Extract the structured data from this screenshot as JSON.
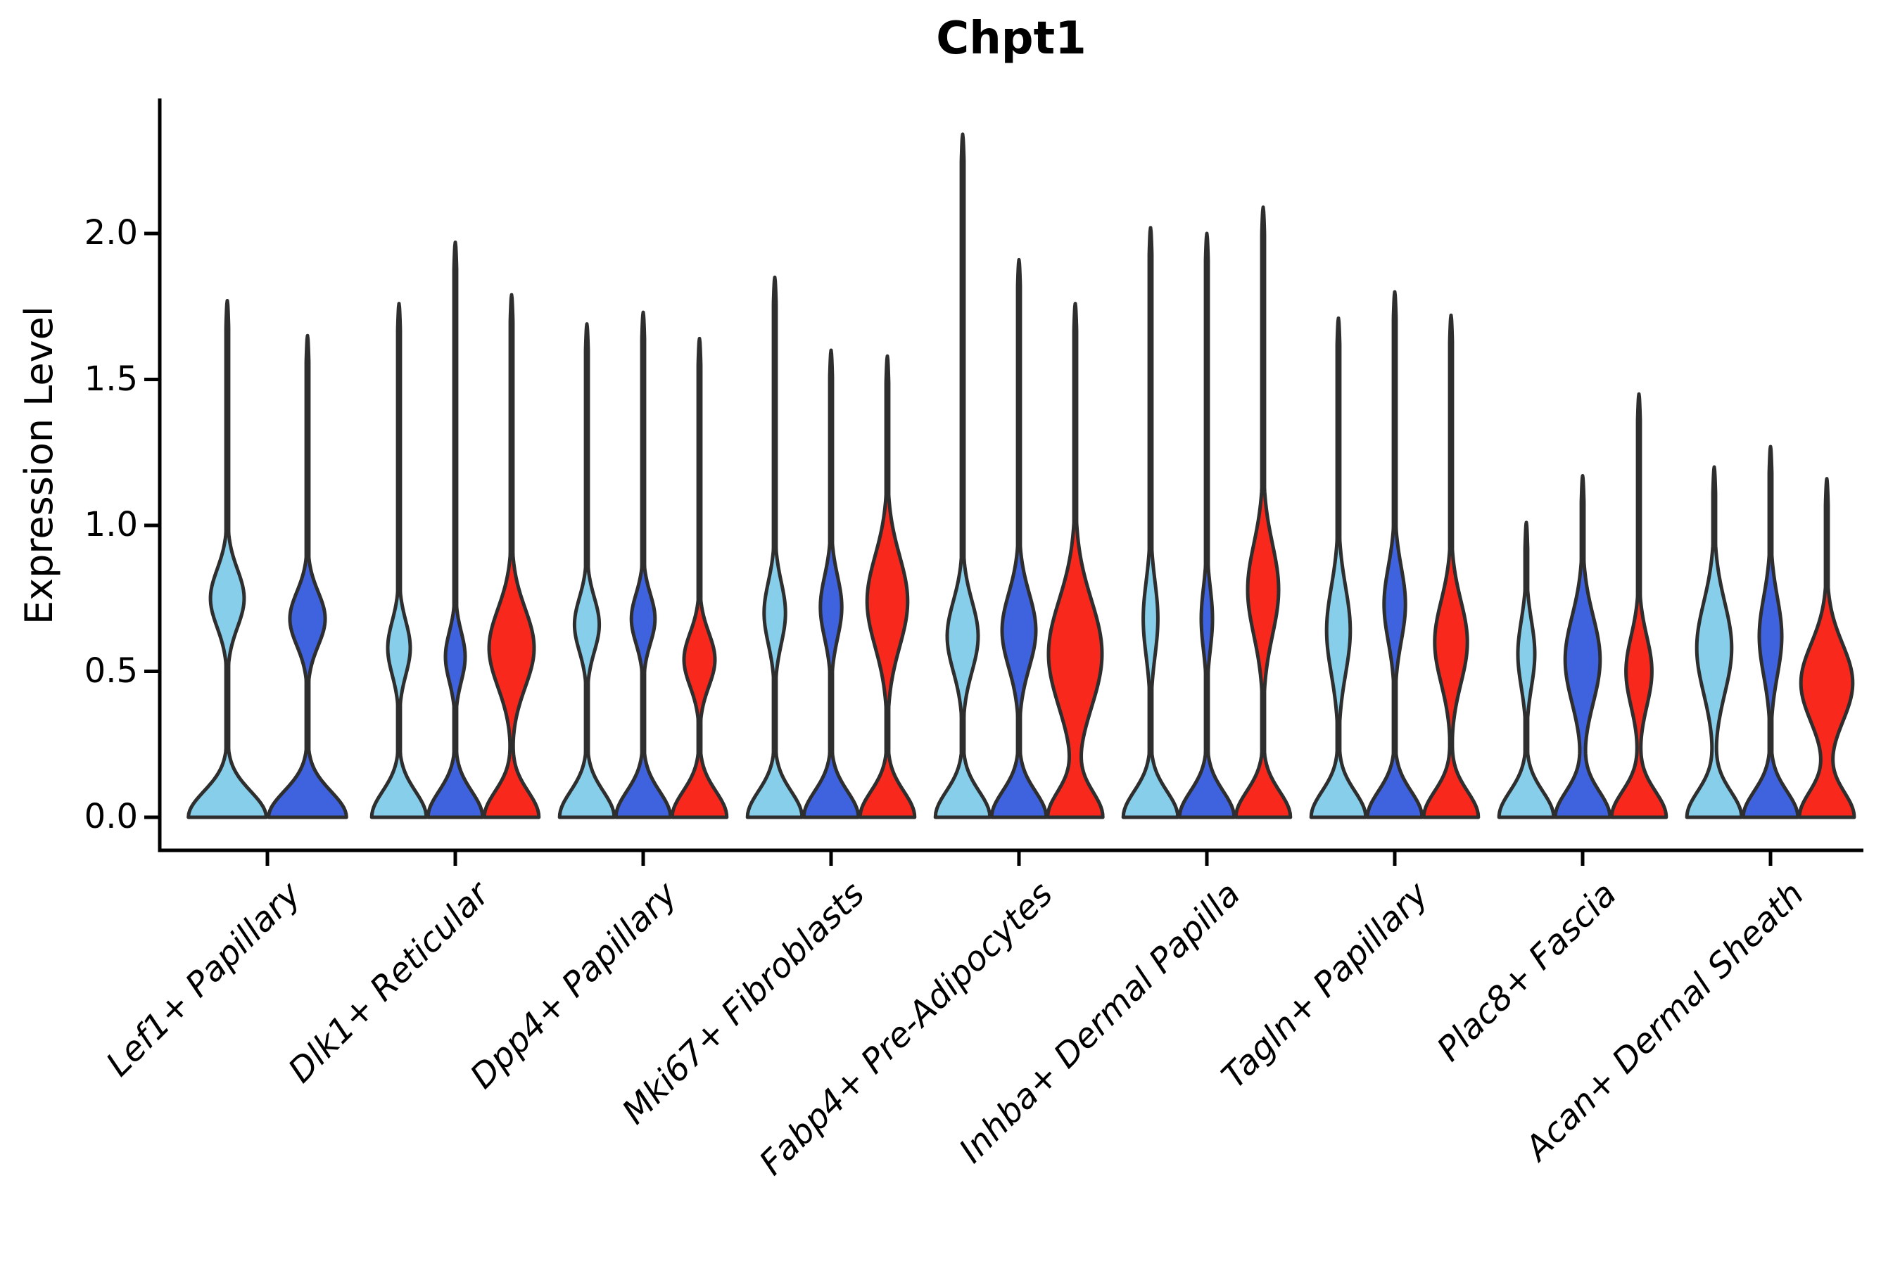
{
  "chart_data": {
    "type": "violin",
    "title": "Chpt1",
    "ylabel": "Expression Level",
    "xlabel": "",
    "ylim": [
      0,
      2.45
    ],
    "yticks": [
      "0.0",
      "0.5",
      "1.0",
      "1.5",
      "2.0"
    ],
    "ytick_values": [
      0,
      0.5,
      1.0,
      1.5,
      2.0
    ],
    "grid": "off",
    "legend": "none",
    "axis_color": "#000000",
    "outline_color": "#2E2E2E",
    "series_colors": [
      {
        "name": "light-blue",
        "hex": "#87CEEB"
      },
      {
        "name": "royal-blue",
        "hex": "#3F63DF"
      },
      {
        "name": "red",
        "hex": "#F8281C"
      }
    ],
    "categories": [
      "Lef1+ Papillary",
      "Dlk1+ Reticular",
      "Dpp4+ Papillary",
      "Mki67+ Fibroblasts",
      "Fabp4+ Pre-Adipocytes",
      "Inhba+ Dermal Papilla",
      "Tagln+ Papillary",
      "Plac8+ Fascia",
      "Acan+ Dermal Sheath"
    ],
    "groups": [
      {
        "label": "Lef1+ Papillary",
        "violins": [
          {
            "series": 0,
            "max_expression": 1.77,
            "bulge_center": 0.75,
            "bulge_sigma": 0.14,
            "bulge_width": 0.42
          },
          {
            "series": 1,
            "max_expression": 1.65,
            "bulge_center": 0.68,
            "bulge_sigma": 0.13,
            "bulge_width": 0.44
          }
        ]
      },
      {
        "label": "Dlk1+ Reticular",
        "violins": [
          {
            "series": 0,
            "max_expression": 1.76,
            "bulge_center": 0.58,
            "bulge_sigma": 0.13,
            "bulge_width": 0.4
          },
          {
            "series": 1,
            "max_expression": 1.97,
            "bulge_center": 0.55,
            "bulge_sigma": 0.12,
            "bulge_width": 0.35
          },
          {
            "series": 2,
            "max_expression": 1.79,
            "bulge_center": 0.58,
            "bulge_sigma": 0.19,
            "bulge_width": 0.8
          }
        ]
      },
      {
        "label": "Dpp4+ Papillary",
        "violins": [
          {
            "series": 0,
            "max_expression": 1.69,
            "bulge_center": 0.66,
            "bulge_sigma": 0.13,
            "bulge_width": 0.44
          },
          {
            "series": 1,
            "max_expression": 1.73,
            "bulge_center": 0.68,
            "bulge_sigma": 0.12,
            "bulge_width": 0.42
          },
          {
            "series": 2,
            "max_expression": 1.64,
            "bulge_center": 0.54,
            "bulge_sigma": 0.13,
            "bulge_width": 0.55
          }
        ]
      },
      {
        "label": "Mki67+ Fibroblasts",
        "violins": [
          {
            "series": 0,
            "max_expression": 1.85,
            "bulge_center": 0.7,
            "bulge_sigma": 0.15,
            "bulge_width": 0.38
          },
          {
            "series": 1,
            "max_expression": 1.6,
            "bulge_center": 0.72,
            "bulge_sigma": 0.15,
            "bulge_width": 0.38
          },
          {
            "series": 2,
            "max_expression": 1.58,
            "bulge_center": 0.74,
            "bulge_sigma": 0.22,
            "bulge_width": 0.72
          }
        ]
      },
      {
        "label": "Fabp4+ Pre-Adipocytes",
        "violins": [
          {
            "series": 0,
            "max_expression": 2.34,
            "bulge_center": 0.62,
            "bulge_sigma": 0.17,
            "bulge_width": 0.55
          },
          {
            "series": 1,
            "max_expression": 1.91,
            "bulge_center": 0.64,
            "bulge_sigma": 0.18,
            "bulge_width": 0.6
          },
          {
            "series": 2,
            "max_expression": 1.76,
            "bulge_center": 0.56,
            "bulge_sigma": 0.26,
            "bulge_width": 0.95
          }
        ]
      },
      {
        "label": "Inhba+ Dermal Papilla",
        "violins": [
          {
            "series": 0,
            "max_expression": 2.02,
            "bulge_center": 0.68,
            "bulge_sigma": 0.18,
            "bulge_width": 0.26
          },
          {
            "series": 1,
            "max_expression": 2.0,
            "bulge_center": 0.68,
            "bulge_sigma": 0.15,
            "bulge_width": 0.2
          },
          {
            "series": 2,
            "max_expression": 2.09,
            "bulge_center": 0.78,
            "bulge_sigma": 0.22,
            "bulge_width": 0.55
          }
        ]
      },
      {
        "label": "Tagln+ Papillary",
        "violins": [
          {
            "series": 0,
            "max_expression": 1.71,
            "bulge_center": 0.64,
            "bulge_sigma": 0.21,
            "bulge_width": 0.42
          },
          {
            "series": 1,
            "max_expression": 1.8,
            "bulge_center": 0.73,
            "bulge_sigma": 0.18,
            "bulge_width": 0.38
          },
          {
            "series": 2,
            "max_expression": 1.72,
            "bulge_center": 0.6,
            "bulge_sigma": 0.2,
            "bulge_width": 0.58
          }
        ]
      },
      {
        "label": "Plac8+ Fascia",
        "violins": [
          {
            "series": 0,
            "max_expression": 1.01,
            "bulge_center": 0.56,
            "bulge_sigma": 0.16,
            "bulge_width": 0.3
          },
          {
            "series": 1,
            "max_expression": 1.17,
            "bulge_center": 0.54,
            "bulge_sigma": 0.21,
            "bulge_width": 0.62
          },
          {
            "series": 2,
            "max_expression": 1.45,
            "bulge_center": 0.5,
            "bulge_sigma": 0.17,
            "bulge_width": 0.46
          }
        ]
      },
      {
        "label": "Acan+ Dermal Sheath",
        "violins": [
          {
            "series": 0,
            "max_expression": 1.2,
            "bulge_center": 0.58,
            "bulge_sigma": 0.22,
            "bulge_width": 0.62
          },
          {
            "series": 1,
            "max_expression": 1.27,
            "bulge_center": 0.62,
            "bulge_sigma": 0.19,
            "bulge_width": 0.4
          },
          {
            "series": 2,
            "max_expression": 1.16,
            "bulge_center": 0.46,
            "bulge_sigma": 0.19,
            "bulge_width": 0.92
          }
        ]
      }
    ]
  }
}
